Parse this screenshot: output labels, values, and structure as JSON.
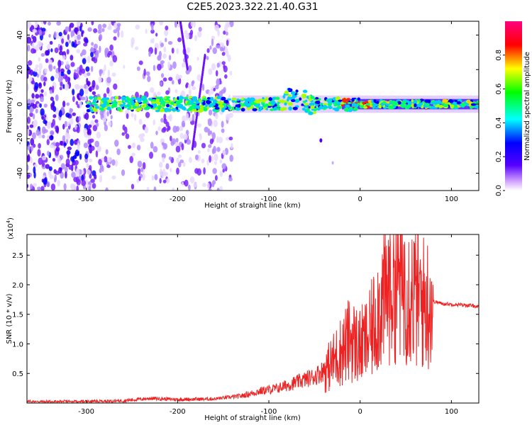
{
  "title": "C2E5.2023.322.21.40.G31",
  "spectrogram": {
    "xlabel": "Height of straight line (km)",
    "ylabel": "Frequency (Hz)",
    "xlim": [
      -365,
      130
    ],
    "ylim": [
      -50,
      48
    ],
    "xticks": [
      -300,
      -200,
      -100,
      0,
      100
    ],
    "yticks": [
      -40,
      -20,
      0,
      20,
      40
    ],
    "colorbar": {
      "label": "Normalized spectral amplitude",
      "lim": [
        0,
        1
      ],
      "ticks": [
        "0.0",
        "0.2",
        "0.4",
        "0.6",
        "0.8"
      ],
      "colors": [
        "#ffffff",
        "#5500ff",
        "#0000ff",
        "#00ffff",
        "#00ff00",
        "#ffff00",
        "#ff0000",
        "#ff0080"
      ]
    }
  },
  "chart_data": [
    {
      "type": "heatmap",
      "title": "C2E5.2023.322.21.40.G31",
      "xlabel": "Height of straight line (km)",
      "ylabel": "Frequency (Hz)",
      "xlim": [
        -365,
        130
      ],
      "ylim": [
        -50,
        48
      ],
      "colorbar_label": "Normalized spectral amplitude",
      "colorbar_range": [
        0,
        1
      ],
      "features": [
        {
          "x_range": [
            -300,
            130
          ],
          "freq": 0,
          "amplitude": "0.3-0.9",
          "name": "center band"
        },
        {
          "x_range": [
            -365,
            -140
          ],
          "freq_range": [
            -50,
            48
          ],
          "amplitude": "0.0-0.2",
          "name": "broadband noise"
        },
        {
          "x_range": [
            -200,
            -185
          ],
          "freq_range": [
            20,
            48
          ],
          "amplitude": "0.1",
          "name": "streak"
        },
        {
          "x_range": [
            -185,
            -175
          ],
          "freq_range": [
            -25,
            25
          ],
          "amplitude": "0.1",
          "name": "streak"
        }
      ]
    },
    {
      "type": "line",
      "xlabel": "Height of straight line (km)",
      "ylabel": "SNR (10 * v/v)",
      "y_multiplier": "(x10^4)",
      "xlim": [
        -365,
        130
      ],
      "ylim": [
        0,
        2.85
      ],
      "color": "#ee2222",
      "series": [
        {
          "x": [
            -365,
            -300,
            -260,
            -230,
            -200,
            -160,
            -130,
            -110,
            -90,
            -70,
            -50,
            -35,
            -25,
            -15,
            -10,
            -5,
            0,
            10,
            20,
            30,
            40,
            50,
            60,
            70,
            80,
            90,
            100,
            110,
            120,
            130
          ],
          "values": [
            0.02,
            0.02,
            0.04,
            0.08,
            0.06,
            0.07,
            0.12,
            0.2,
            0.25,
            0.35,
            0.45,
            0.6,
            0.8,
            1.0,
            1.1,
            1.0,
            0.95,
            1.1,
            1.6,
            1.9,
            2.2,
            2.0,
            1.8,
            1.7,
            1.72,
            1.68,
            1.67,
            1.66,
            1.65,
            1.63
          ]
        }
      ]
    }
  ],
  "snr": {
    "xlabel": "Height of straight line (km)",
    "ylabel": "SNR (10 * v/v)",
    "multiplier": "(x10",
    "multiplier_exp": "4",
    "multiplier_close": ")",
    "xticks": [
      -300,
      -200,
      -100,
      0,
      100
    ],
    "yticks": [
      "0.5",
      "1.0",
      "1.5",
      "2.0",
      "2.5"
    ]
  }
}
